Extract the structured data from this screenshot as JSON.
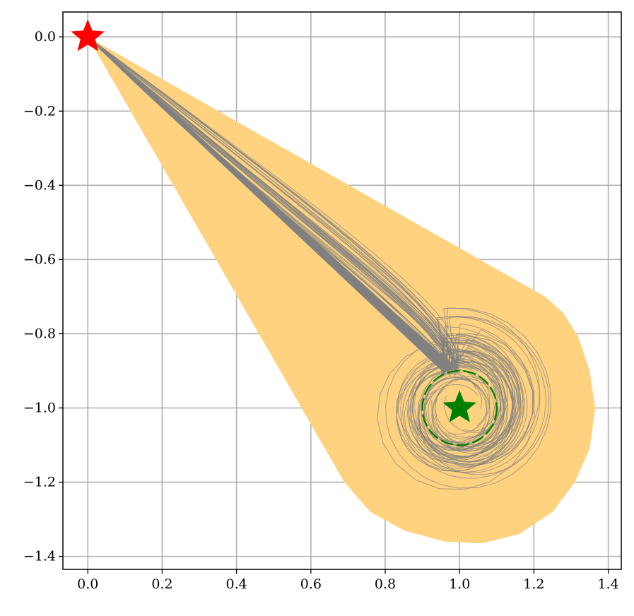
{
  "chart_data": {
    "type": "scatter",
    "title": "",
    "xlabel": "",
    "ylabel": "",
    "xlim": [
      -0.067,
      1.435
    ],
    "ylim": [
      -1.435,
      0.067
    ],
    "grid": true,
    "x_ticks": [
      0.0,
      0.2,
      0.4,
      0.6,
      0.8,
      1.0,
      1.2,
      1.4
    ],
    "x_tick_labels": [
      "0.0",
      "0.2",
      "0.4",
      "0.6",
      "0.8",
      "1.0",
      "1.2",
      "1.4"
    ],
    "y_ticks": [
      0.0,
      -0.2,
      -0.4,
      -0.6,
      -0.8,
      -1.0,
      -1.2,
      -1.4
    ],
    "y_tick_labels": [
      "0.0",
      "−0.2",
      "−0.4",
      "−0.6",
      "−0.8",
      "−1.0",
      "−1.2",
      "−1.4"
    ],
    "start": {
      "x": 0.0,
      "y": 0.0,
      "marker": "star",
      "color": "#ff0000"
    },
    "goal": {
      "x": 1.0,
      "y": -1.0,
      "marker": "star",
      "color": "#008000"
    },
    "goal_region": {
      "center": [
        1.0,
        -1.0
      ],
      "radius": 0.1,
      "style": "dashed",
      "color": "#008000"
    },
    "reachable_region": {
      "color": "#ffd280",
      "polygon": [
        [
          0.0,
          0.0
        ],
        [
          1.23,
          -0.7
        ],
        [
          1.28,
          -0.745
        ],
        [
          1.32,
          -0.81
        ],
        [
          1.35,
          -0.9
        ],
        [
          1.365,
          -1.0
        ],
        [
          1.35,
          -1.11
        ],
        [
          1.31,
          -1.2
        ],
        [
          1.25,
          -1.28
        ],
        [
          1.16,
          -1.34
        ],
        [
          1.06,
          -1.365
        ],
        [
          0.96,
          -1.36
        ],
        [
          0.85,
          -1.33
        ],
        [
          0.76,
          -1.28
        ],
        [
          0.69,
          -1.2
        ],
        [
          0.0,
          0.0
        ]
      ]
    },
    "trajectories": {
      "color": "#808080",
      "count": 38,
      "start": [
        0.0,
        0.0
      ],
      "end_near": [
        0.97,
        -0.9
      ],
      "orbit_radius_range": [
        0.09,
        0.24
      ]
    }
  }
}
